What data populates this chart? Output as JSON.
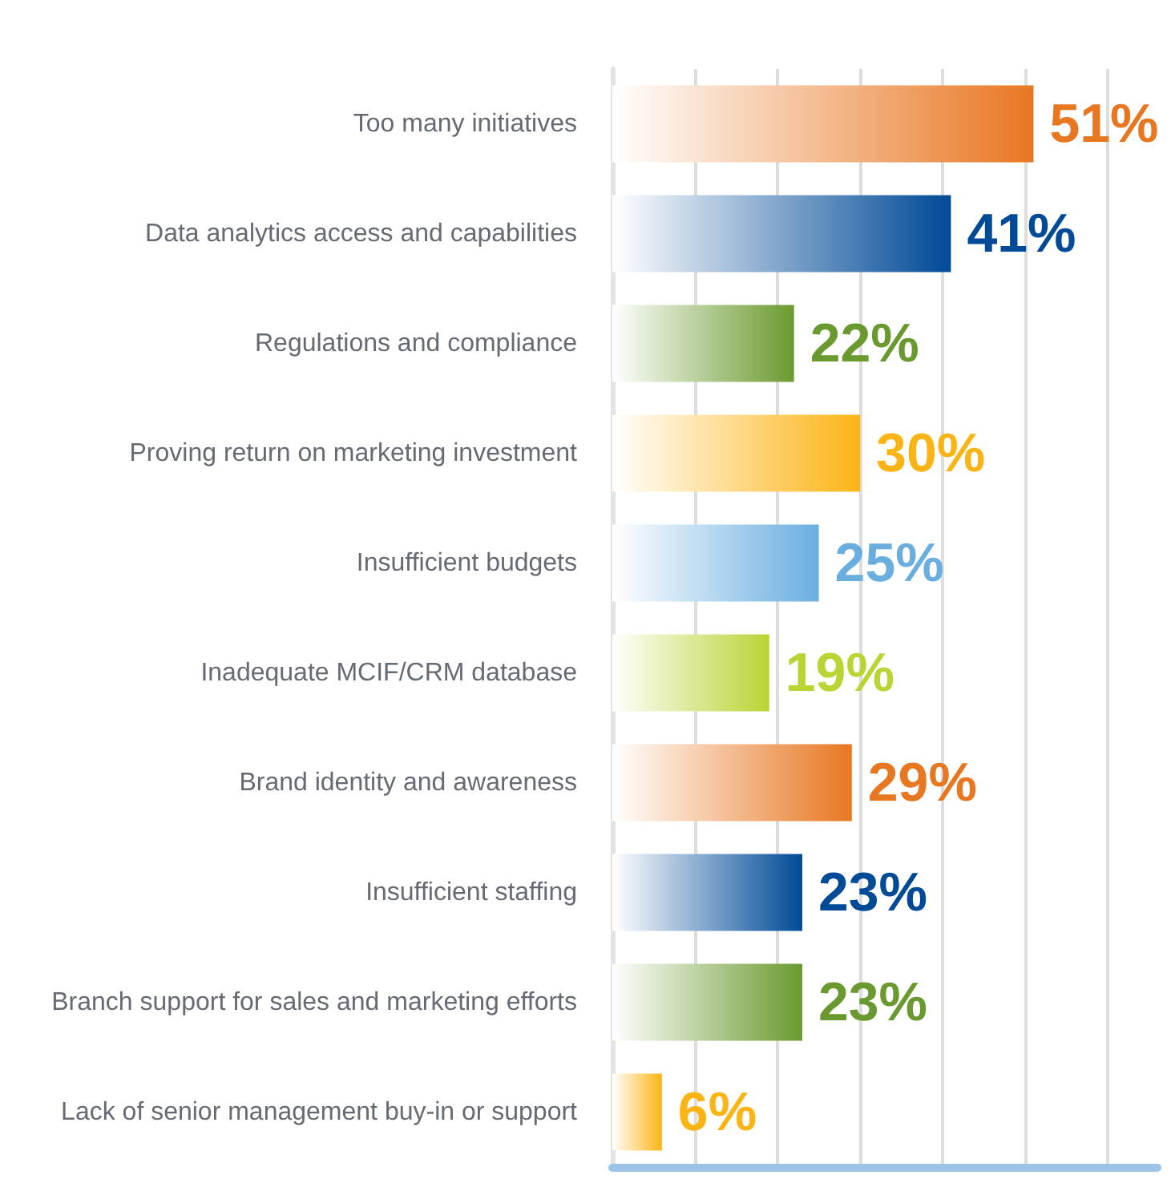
{
  "chart_data": {
    "type": "bar",
    "orientation": "horizontal",
    "categories": [
      "Too many initiatives",
      "Data analytics access and capabilities",
      "Regulations and compliance",
      "Proving return on marketing investment",
      "Insufficient budgets",
      "Inadequate MCIF/CRM database",
      "Brand identity and awareness",
      "Insufficient staffing",
      "Branch support for sales and marketing efforts",
      "Lack of senior management buy-in or support"
    ],
    "values": [
      51,
      41,
      22,
      30,
      25,
      19,
      29,
      23,
      23,
      6
    ],
    "value_labels": [
      "51%",
      "41%",
      "22%",
      "30%",
      "25%",
      "19%",
      "29%",
      "23%",
      "23%",
      "6%"
    ],
    "colors": [
      "#e87722",
      "#004a97",
      "#6a9a2f",
      "#fbb415",
      "#6aaee0",
      "#b9d433",
      "#e87722",
      "#004a97",
      "#6a9a2f",
      "#fbb415"
    ],
    "xlim": [
      0,
      66
    ],
    "xticks": [
      {
        "value": 0,
        "label": null
      },
      {
        "value": 10,
        "label": null
      },
      {
        "value": 20,
        "label": null
      },
      {
        "value": 30,
        "label": null
      },
      {
        "value": 40,
        "label": null
      },
      {
        "value": 50,
        "label": null
      },
      {
        "value": 60,
        "label": null
      }
    ],
    "grid": "x",
    "tick_labels": "y"
  }
}
